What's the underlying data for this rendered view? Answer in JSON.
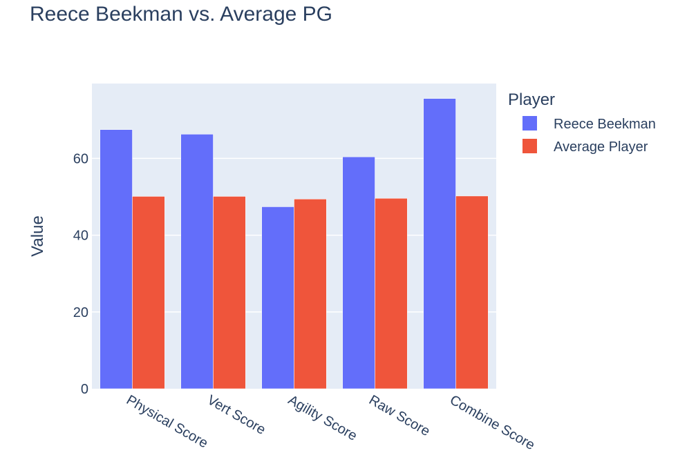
{
  "chart_data": {
    "type": "bar",
    "title": "Reece Beekman vs. Average PG",
    "xlabel": "",
    "ylabel": "Value",
    "categories": [
      "Physical Score",
      "Vert Score",
      "Agility Score",
      "Raw Score",
      "Combine Score"
    ],
    "series": [
      {
        "name": "Reece Beekman",
        "color": "#636efa",
        "values": [
          67.5,
          66.3,
          47.4,
          60.4,
          75.6
        ]
      },
      {
        "name": "Average Player",
        "color": "#ef553b",
        "values": [
          50.1,
          50.1,
          49.4,
          49.6,
          50.2
        ]
      }
    ],
    "ylim": [
      0,
      79.5
    ],
    "yticks": [
      0,
      20,
      40,
      60
    ],
    "grid": true,
    "legend": {
      "title": "Player",
      "placement": "right"
    },
    "barmode": "group",
    "plot_bgcolor": "#e5ecf6"
  }
}
